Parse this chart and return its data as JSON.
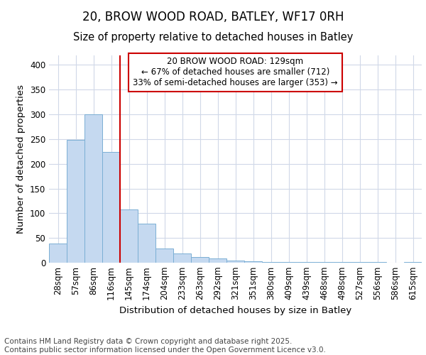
{
  "title": "20, BROW WOOD ROAD, BATLEY, WF17 0RH",
  "subtitle": "Size of property relative to detached houses in Batley",
  "xlabel": "Distribution of detached houses by size in Batley",
  "ylabel": "Number of detached properties",
  "categories": [
    "28sqm",
    "57sqm",
    "86sqm",
    "116sqm",
    "145sqm",
    "174sqm",
    "204sqm",
    "233sqm",
    "263sqm",
    "292sqm",
    "321sqm",
    "351sqm",
    "380sqm",
    "409sqm",
    "439sqm",
    "468sqm",
    "498sqm",
    "527sqm",
    "556sqm",
    "586sqm",
    "615sqm"
  ],
  "values": [
    39,
    248,
    300,
    224,
    107,
    79,
    29,
    18,
    12,
    9,
    5,
    3,
    2,
    2,
    2,
    1,
    1,
    1,
    1,
    0,
    2
  ],
  "bar_color": "#c5d9f0",
  "bar_edge_color": "#7bafd4",
  "vline_color": "#cc0000",
  "vline_x": 3.5,
  "annotation_text": "20 BROW WOOD ROAD: 129sqm\n← 67% of detached houses are smaller (712)\n33% of semi-detached houses are larger (353) →",
  "annotation_box_facecolor": "#ffffff",
  "annotation_box_edgecolor": "#cc0000",
  "ylim": [
    0,
    420
  ],
  "yticks": [
    0,
    50,
    100,
    150,
    200,
    250,
    300,
    350,
    400
  ],
  "background_color": "#ffffff",
  "plot_background_color": "#ffffff",
  "grid_color": "#d0d8e8",
  "footer_text": "Contains HM Land Registry data © Crown copyright and database right 2025.\nContains public sector information licensed under the Open Government Licence v3.0.",
  "title_fontsize": 12,
  "subtitle_fontsize": 10.5,
  "axis_label_fontsize": 9.5,
  "tick_fontsize": 8.5,
  "annotation_fontsize": 8.5,
  "footer_fontsize": 7.5
}
